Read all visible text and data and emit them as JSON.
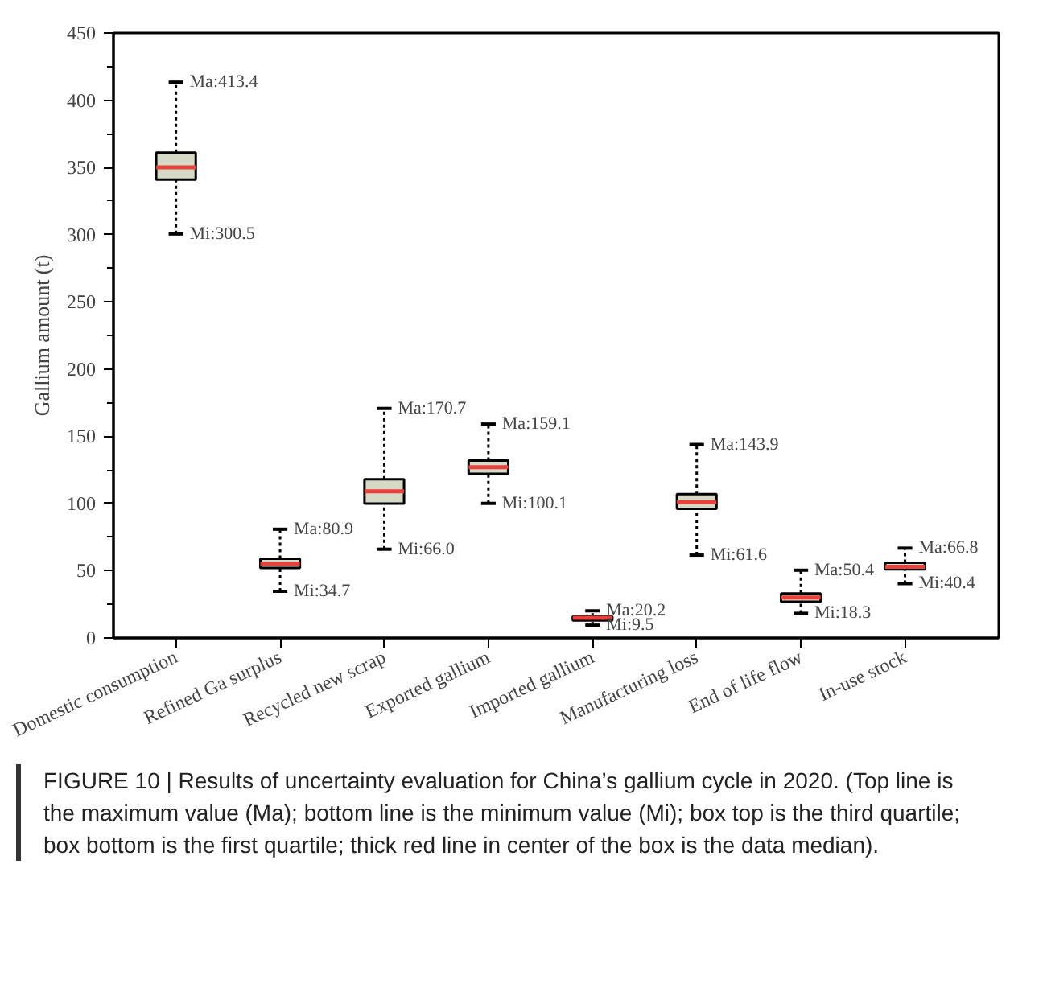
{
  "chart_data": {
    "type": "box",
    "ylabel": "Gallium amount (t)",
    "categories": [
      "Domestic consumption",
      "Refined Ga surplus",
      "Recycled new scrap",
      "Exported gallium",
      "Imported gallium",
      "Manufacturing loss",
      "End of life flow",
      "In-use stock"
    ],
    "boxes": [
      {
        "low": 300.5,
        "q1": 341,
        "median": 350,
        "q3": 361,
        "high": 413.4
      },
      {
        "low": 34.7,
        "q1": 52,
        "median": 55,
        "q3": 59,
        "high": 80.9
      },
      {
        "low": 66.0,
        "q1": 100,
        "median": 109,
        "q3": 118,
        "high": 170.7
      },
      {
        "low": 100.1,
        "q1": 122,
        "median": 127,
        "q3": 132,
        "high": 159.1
      },
      {
        "low": 9.5,
        "q1": 13,
        "median": 15,
        "q3": 16,
        "high": 20.2
      },
      {
        "low": 61.6,
        "q1": 96,
        "median": 101,
        "q3": 107,
        "high": 143.9
      },
      {
        "low": 18.3,
        "q1": 27,
        "median": 30,
        "q3": 33,
        "high": 50.4
      },
      {
        "low": 40.4,
        "q1": 51,
        "median": 53,
        "q3": 56,
        "high": 66.8
      }
    ],
    "color": "#d6d9c6",
    "ylim": [
      0,
      450
    ],
    "yticks": [
      0,
      50,
      100,
      150,
      200,
      250,
      300,
      350,
      400,
      450
    ],
    "grid": false,
    "annotations": [
      {
        "text": "Ma:413.4",
        "x": "Domestic consumption",
        "y": 413.4
      },
      {
        "text": "Mi:300.5",
        "x": "Domestic consumption",
        "y": 300.5
      },
      {
        "text": "Ma:80.9",
        "x": "Refined Ga surplus",
        "y": 80.9
      },
      {
        "text": "Mi:34.7",
        "x": "Refined Ga surplus",
        "y": 34.7
      },
      {
        "text": "Ma:170.7",
        "x": "Recycled new scrap",
        "y": 170.7
      },
      {
        "text": "Mi:66.0",
        "x": "Recycled new scrap",
        "y": 66.0
      },
      {
        "text": "Ma:159.1",
        "x": "Exported gallium",
        "y": 159.1
      },
      {
        "text": "Mi:100.1",
        "x": "Exported gallium",
        "y": 100.1
      },
      {
        "text": "Ma:20.2",
        "x": "Imported gallium",
        "y": 20.2
      },
      {
        "text": "Mi:9.5",
        "x": "Imported gallium",
        "y": 9.5
      },
      {
        "text": "Ma:143.9",
        "x": "Manufacturing loss",
        "y": 143.9
      },
      {
        "text": "Mi:61.6",
        "x": "Manufacturing loss",
        "y": 61.6
      },
      {
        "text": "Ma:50.4",
        "x": "End of life flow",
        "y": 50.4
      },
      {
        "text": "Mi:18.3",
        "x": "End of life flow",
        "y": 18.3
      },
      {
        "text": "Ma:66.8",
        "x": "In-use stock",
        "y": 66.8
      },
      {
        "text": "Mi:40.4",
        "x": "In-use stock",
        "y": 40.4
      },
      "FIGURE 10 | Results of uncertainty evaluation for China’s gallium cycle in 2020. (Top line is the maximum value (Ma); bottom line is the minimum value (Mi); box top is the third quartile; box bottom is the first quartile; thick red line in center of the box is the data median)."
    ]
  }
}
